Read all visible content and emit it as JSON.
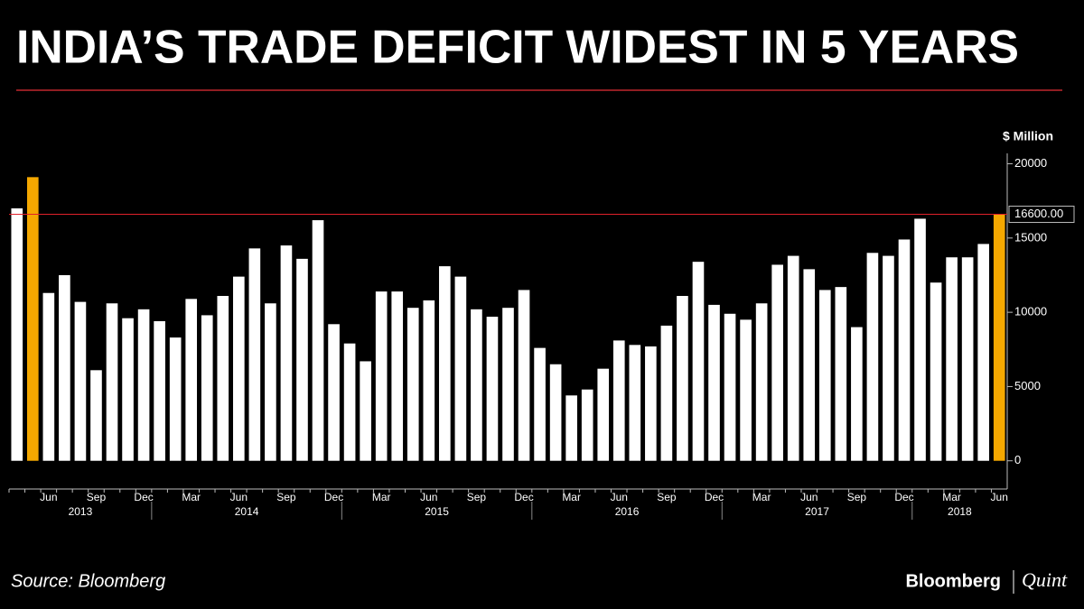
{
  "chart_data": {
    "type": "bar",
    "title": "INDIA’S TRADE DEFICIT WIDEST IN 5 YEARS",
    "y_axis_label": "$ Million",
    "source": "Source: Bloomberg",
    "categories": [
      null,
      null,
      "Jun",
      null,
      null,
      "Sep",
      null,
      null,
      "Dec",
      null,
      null,
      "Mar",
      null,
      null,
      "Jun",
      null,
      null,
      "Sep",
      null,
      null,
      "Dec",
      null,
      null,
      "Mar",
      null,
      null,
      "Jun",
      null,
      null,
      "Sep",
      null,
      null,
      "Dec",
      null,
      null,
      "Mar",
      null,
      null,
      "Jun",
      null,
      null,
      "Sep",
      null,
      null,
      "Dec",
      null,
      null,
      "Mar",
      null,
      null,
      "Jun",
      null,
      null,
      "Sep",
      null,
      null,
      "Dec",
      null,
      null,
      "Mar",
      null,
      null,
      "Jun"
    ],
    "year_labels": [
      "2013",
      "2014",
      "2015",
      "2016",
      "2017",
      "2018"
    ],
    "values": [
      17000,
      19100,
      11300,
      12500,
      10700,
      6100,
      10600,
      9600,
      10200,
      9400,
      8300,
      10900,
      9800,
      11100,
      12400,
      14300,
      10600,
      14500,
      13600,
      16200,
      9200,
      7900,
      6700,
      11400,
      11400,
      10300,
      10800,
      13100,
      12400,
      10200,
      9700,
      10300,
      11500,
      7600,
      6500,
      4400,
      4800,
      6200,
      8100,
      7800,
      7700,
      9100,
      11100,
      13400,
      10500,
      9900,
      9500,
      10600,
      13200,
      13800,
      12900,
      11500,
      11700,
      9000,
      14000,
      13800,
      14900,
      16300,
      12000,
      13700,
      13700,
      14600,
      16600
    ],
    "colors": [
      "#ffffff",
      "#f5a800",
      "#ffffff",
      "#ffffff",
      "#ffffff",
      "#ffffff",
      "#ffffff",
      "#ffffff",
      "#ffffff",
      "#ffffff",
      "#ffffff",
      "#ffffff",
      "#ffffff",
      "#ffffff",
      "#ffffff",
      "#ffffff",
      "#ffffff",
      "#ffffff",
      "#ffffff",
      "#ffffff",
      "#ffffff",
      "#ffffff",
      "#ffffff",
      "#ffffff",
      "#ffffff",
      "#ffffff",
      "#ffffff",
      "#ffffff",
      "#ffffff",
      "#ffffff",
      "#ffffff",
      "#ffffff",
      "#ffffff",
      "#ffffff",
      "#ffffff",
      "#ffffff",
      "#ffffff",
      "#ffffff",
      "#ffffff",
      "#ffffff",
      "#ffffff",
      "#ffffff",
      "#ffffff",
      "#ffffff",
      "#ffffff",
      "#ffffff",
      "#ffffff",
      "#ffffff",
      "#ffffff",
      "#ffffff",
      "#ffffff",
      "#ffffff",
      "#ffffff",
      "#ffffff",
      "#ffffff",
      "#ffffff",
      "#ffffff",
      "#ffffff",
      "#ffffff",
      "#ffffff",
      "#ffffff",
      "#ffffff",
      "#f5a800"
    ],
    "ylim": [
      -1900,
      20700
    ],
    "yticks": [
      0,
      5000,
      10000,
      15000,
      20000
    ],
    "reference_line": {
      "value": 16600,
      "label": "16600.00",
      "color": "#e0202a"
    }
  },
  "branding": {
    "left": "Bloomberg",
    "right": "Quint"
  }
}
